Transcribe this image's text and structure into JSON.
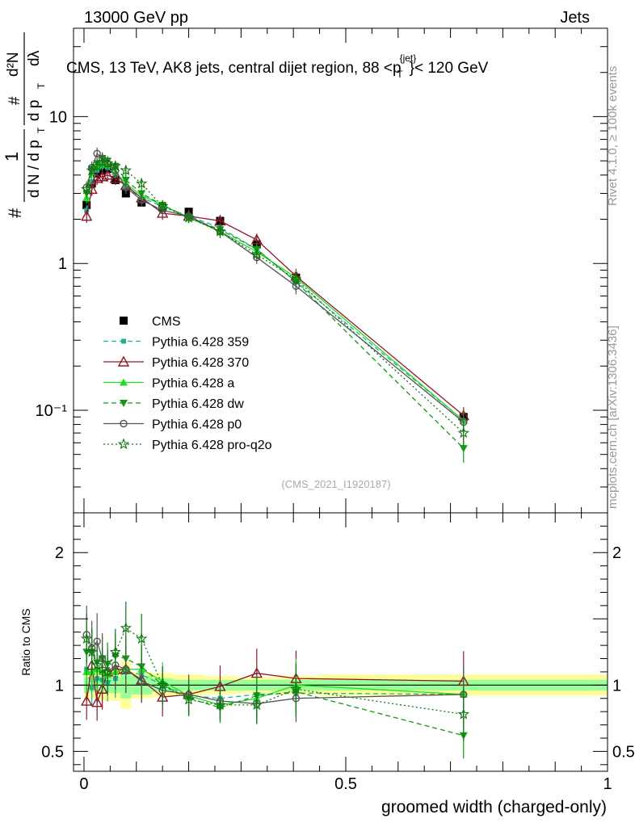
{
  "header": {
    "energy_label": "13000 GeV pp",
    "category_label": "Jets"
  },
  "side_labels": {
    "rivet": "Rivet 4.1.0, ≥ 100k events",
    "mcplots": "mcplots.cern.ch [arXiv:1306.3436]"
  },
  "chart_data": [
    {
      "type": "line",
      "title": "CMS, 13 TeV, AK8 jets, central dijet region, 88 <p_T^{jet}< 120 GeV",
      "ylabel": "1/dN/dpT # d²N/dpT dλ",
      "ylabel_parts": {
        "n1": "#",
        "one": "1",
        "den": "d N / d p",
        "sub_t": "T",
        "num": "d²N",
        "den2": "d p",
        "lambda": "dλ"
      },
      "yscale": "log",
      "ylim": [
        0.02,
        40
      ],
      "xlim": [
        -0.02,
        1.0
      ],
      "yticks": [
        {
          "value": 0.1,
          "label": "10⁻¹"
        },
        {
          "value": 1,
          "label": "1"
        },
        {
          "value": 10,
          "label": "10"
        }
      ],
      "watermark": "(CMS_2021_I1920187)",
      "x": [
        0.005,
        0.015,
        0.025,
        0.035,
        0.045,
        0.06,
        0.08,
        0.11,
        0.15,
        0.2,
        0.26,
        0.33,
        0.405,
        0.725
      ],
      "series": [
        {
          "name": "CMS",
          "color": "#000000",
          "marker": "square",
          "style": "none",
          "values": [
            2.5,
            3.5,
            4.1,
            4.3,
            4.4,
            3.7,
            3.0,
            2.6,
            2.4,
            2.25,
            1.95,
            1.35,
            0.8,
            0.09
          ],
          "err": [
            0.06,
            0.06,
            0.06,
            0.06,
            0.06,
            0.06,
            0.06,
            0.06,
            0.06,
            0.06,
            0.06,
            0.07,
            0.08,
            0.08
          ]
        },
        {
          "name": "Pythia 6.428 359",
          "color": "#20b090",
          "marker": "smallsquare",
          "style": "dashed",
          "values": [
            2.3,
            3.6,
            4.3,
            4.6,
            4.5,
            4.0,
            3.3,
            2.8,
            2.45,
            2.1,
            1.75,
            1.25,
            0.75,
            0.085
          ],
          "err": [
            0.08,
            0.08,
            0.08,
            0.08,
            0.08,
            0.08,
            0.08,
            0.08,
            0.08,
            0.08,
            0.08,
            0.1,
            0.12,
            0.15
          ]
        },
        {
          "name": "Pythia 6.428 370",
          "color": "#8b1a2a",
          "marker": "opentriangle",
          "style": "solid",
          "values": [
            2.1,
            3.2,
            3.8,
            3.9,
            4.0,
            3.8,
            3.4,
            2.8,
            2.2,
            2.1,
            1.95,
            1.45,
            0.82,
            0.092
          ],
          "err": [
            0.1,
            0.1,
            0.1,
            0.1,
            0.1,
            0.1,
            0.1,
            0.1,
            0.1,
            0.1,
            0.1,
            0.1,
            0.12,
            0.14
          ]
        },
        {
          "name": "Pythia 6.428 a",
          "color": "#22dd22",
          "marker": "triangle",
          "style": "solid",
          "values": [
            2.8,
            4.2,
            4.6,
            4.8,
            4.7,
            4.2,
            3.5,
            2.9,
            2.5,
            2.05,
            1.65,
            1.2,
            0.8,
            0.085
          ],
          "err": [
            0.08,
            0.08,
            0.08,
            0.08,
            0.08,
            0.08,
            0.08,
            0.08,
            0.08,
            0.08,
            0.08,
            0.1,
            0.12,
            0.15
          ]
        },
        {
          "name": "Pythia 6.428 dw",
          "color": "#119911",
          "marker": "downtriangle",
          "style": "dashed",
          "values": [
            3.0,
            4.4,
            4.8,
            5.2,
            5.0,
            4.6,
            3.7,
            3.0,
            2.5,
            2.05,
            1.7,
            1.25,
            0.75,
            0.055
          ],
          "err": [
            0.08,
            0.08,
            0.08,
            0.08,
            0.08,
            0.08,
            0.08,
            0.08,
            0.08,
            0.08,
            0.08,
            0.1,
            0.12,
            0.2
          ]
        },
        {
          "name": "Pythia 6.428 p0",
          "color": "#555555",
          "marker": "opencircle",
          "style": "solid",
          "values": [
            3.3,
            4.5,
            5.6,
            5.2,
            4.8,
            4.3,
            3.3,
            2.7,
            2.3,
            2.1,
            1.65,
            1.1,
            0.7,
            0.083
          ],
          "err": [
            0.1,
            0.1,
            0.1,
            0.1,
            0.1,
            0.1,
            0.1,
            0.1,
            0.1,
            0.1,
            0.1,
            0.1,
            0.12,
            0.15
          ]
        },
        {
          "name": "Pythia 6.428 pro-q2o",
          "color": "#117711",
          "marker": "star",
          "style": "dotted",
          "values": [
            3.2,
            4.3,
            4.6,
            4.9,
            4.8,
            4.6,
            4.3,
            3.5,
            2.45,
            2.05,
            1.65,
            1.15,
            0.78,
            0.07
          ],
          "err": [
            0.08,
            0.08,
            0.08,
            0.08,
            0.08,
            0.08,
            0.08,
            0.08,
            0.08,
            0.08,
            0.08,
            0.1,
            0.12,
            0.18
          ]
        }
      ]
    },
    {
      "type": "line",
      "title": "",
      "ylabel": "Ratio to CMS",
      "xlabel": "groomed width (charged-only)",
      "ylim": [
        0.35,
        2.3
      ],
      "xlim": [
        -0.02,
        1.0
      ],
      "yticks": [
        {
          "value": 0.5,
          "label": "0.5"
        },
        {
          "value": 1,
          "label": "1"
        },
        {
          "value": 2,
          "label": "2"
        }
      ],
      "xticks": [
        {
          "value": 0,
          "label": "0"
        },
        {
          "value": 0.5,
          "label": "0.5"
        },
        {
          "value": 1,
          "label": "1"
        }
      ],
      "bands": [
        {
          "x0": 0.0,
          "x1": 0.01,
          "green": 0.06,
          "yellow": 0.12
        },
        {
          "x0": 0.01,
          "x1": 0.02,
          "green": 0.05,
          "yellow": 0.1
        },
        {
          "x0": 0.02,
          "x1": 0.03,
          "green": 0.05,
          "yellow": 0.1
        },
        {
          "x0": 0.03,
          "x1": 0.04,
          "green": 0.05,
          "yellow": 0.12
        },
        {
          "x0": 0.04,
          "x1": 0.05,
          "green": 0.06,
          "yellow": 0.12
        },
        {
          "x0": 0.05,
          "x1": 0.07,
          "green": 0.06,
          "yellow": 0.12
        },
        {
          "x0": 0.07,
          "x1": 0.09,
          "green": 0.1,
          "yellow": 0.18
        },
        {
          "x0": 0.09,
          "x1": 0.13,
          "green": 0.07,
          "yellow": 0.1
        },
        {
          "x0": 0.13,
          "x1": 0.17,
          "green": 0.05,
          "yellow": 0.09
        },
        {
          "x0": 0.17,
          "x1": 0.23,
          "green": 0.04,
          "yellow": 0.08
        },
        {
          "x0": 0.23,
          "x1": 0.29,
          "green": 0.04,
          "yellow": 0.07
        },
        {
          "x0": 0.29,
          "x1": 0.37,
          "green": 0.04,
          "yellow": 0.06
        },
        {
          "x0": 0.37,
          "x1": 0.45,
          "green": 0.04,
          "yellow": 0.07
        },
        {
          "x0": 0.45,
          "x1": 1.0,
          "green": 0.04,
          "yellow": 0.08
        }
      ],
      "series": [
        {
          "name": "Pythia 6.428 359",
          "values": [
            1.12,
            0.98,
            1.05,
            1.04,
            1.02,
            1.05,
            1.1,
            1.08,
            1.0,
            0.92,
            0.9,
            0.93,
            0.94,
            0.93
          ]
        },
        {
          "name": "Pythia 6.428 370",
          "values": [
            0.88,
            1.15,
            0.87,
            0.97,
            1.1,
            1.12,
            1.12,
            1.04,
            0.91,
            0.93,
            0.99,
            1.09,
            1.05,
            1.03
          ]
        },
        {
          "name": "Pythia 6.428 a",
          "values": [
            1.1,
            1.1,
            1.12,
            1.1,
            1.08,
            1.1,
            1.12,
            1.12,
            1.03,
            0.92,
            0.85,
            0.9,
            1.0,
            0.93
          ]
        },
        {
          "name": "Pythia 6.428 dw",
          "values": [
            1.25,
            1.25,
            1.17,
            1.2,
            1.16,
            1.22,
            1.2,
            1.14,
            1.0,
            0.9,
            0.83,
            0.92,
            0.95,
            0.62
          ]
        },
        {
          "name": "Pythia 6.428 p0",
          "values": [
            1.38,
            1.28,
            1.33,
            1.2,
            1.1,
            1.15,
            1.12,
            1.03,
            0.96,
            0.93,
            0.88,
            0.86,
            0.9,
            0.93
          ]
        },
        {
          "name": "Pythia 6.428 pro-q2o",
          "values": [
            1.35,
            1.25,
            1.15,
            1.12,
            1.1,
            1.25,
            1.43,
            1.35,
            1.0,
            0.89,
            0.85,
            0.85,
            0.97,
            0.78
          ]
        }
      ]
    }
  ]
}
